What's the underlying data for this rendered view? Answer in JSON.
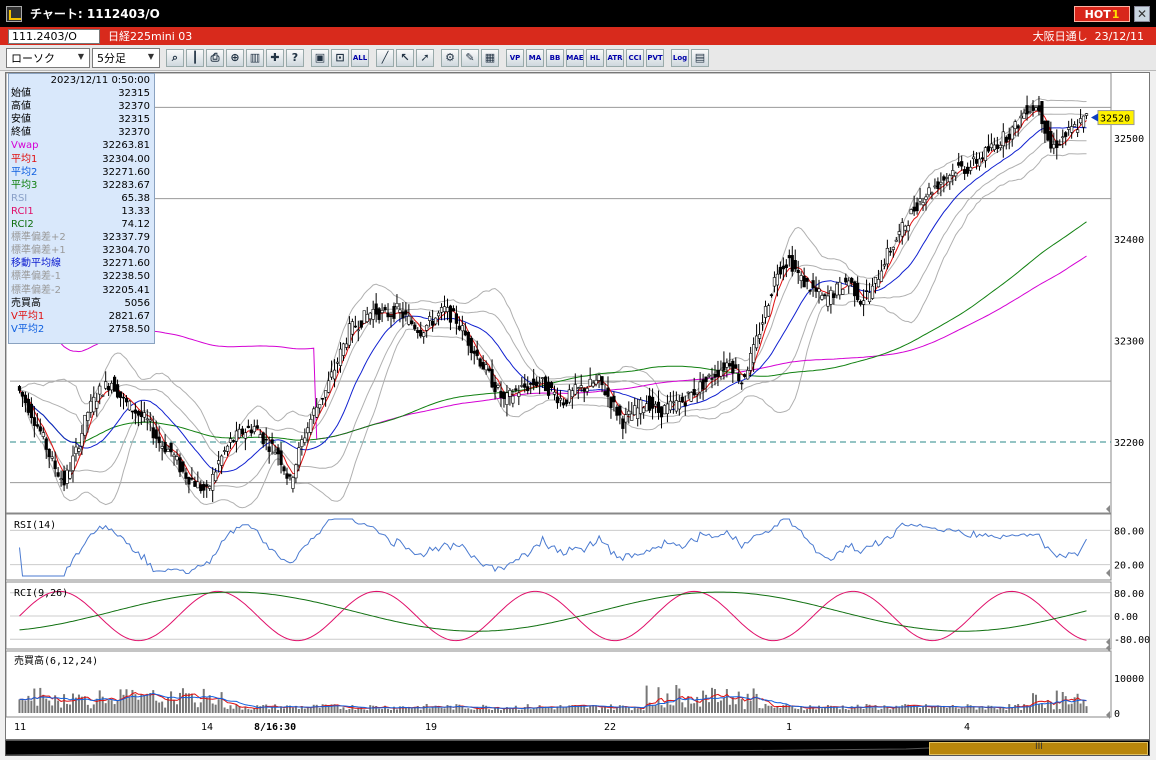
{
  "window": {
    "title": "チャート: 1112403/O"
  },
  "hot_button": {
    "label": "HOT",
    "num": "1"
  },
  "close_button": {
    "label": "✕"
  },
  "symbol_bar": {
    "code": "111.2403/O",
    "name": "日経225mini 03",
    "market": "大阪日通し",
    "date": "23/12/11"
  },
  "toolbar": {
    "chart_type": "ローソク",
    "interval": "5分足",
    "buttons": [
      "search",
      "cursor",
      "print",
      "zoom",
      "indicator",
      "crossline",
      "help",
      "candle",
      "range",
      "all",
      "line",
      "pointer",
      "arrow",
      "gear",
      "pencil",
      "palette",
      "vp",
      "ma",
      "bb",
      "mae",
      "hl",
      "atr",
      "cci",
      "pvt",
      "log",
      "settings"
    ],
    "button_labels": {
      "all": "ALL",
      "vp": "VP",
      "ma": "MA",
      "bb": "BB",
      "mae": "MAE",
      "hl": "HL",
      "atr": "ATR",
      "cci": "CCI",
      "pvt": "PVT",
      "log": "Log"
    }
  },
  "info_panel": {
    "datetime": "2023/12/11 0:50:00",
    "rows": [
      {
        "label": "始値",
        "value": "32315",
        "color": "#000000"
      },
      {
        "label": "高値",
        "value": "32370",
        "color": "#000000"
      },
      {
        "label": "安値",
        "value": "32315",
        "color": "#000000"
      },
      {
        "label": "終値",
        "value": "32370",
        "color": "#000000"
      },
      {
        "label": "Vwap",
        "value": "32263.81",
        "color": "#d400d4"
      },
      {
        "label": "平均1",
        "value": "32304.00",
        "color": "#e01010"
      },
      {
        "label": "平均2",
        "value": "32271.60",
        "color": "#1060e0"
      },
      {
        "label": "平均3",
        "value": "32283.67",
        "color": "#108010"
      },
      {
        "label": "RSI",
        "value": "65.38",
        "color": "#8aa0c8"
      },
      {
        "label": "RCI1",
        "value": "13.33",
        "color": "#e0106a"
      },
      {
        "label": "RCI2",
        "value": "74.12",
        "color": "#107010"
      },
      {
        "label": "標準偏差+2",
        "value": "32337.79",
        "color": "#9a9a9a"
      },
      {
        "label": "標準偏差+1",
        "value": "32304.70",
        "color": "#9a9a9a"
      },
      {
        "label": "移動平均線",
        "value": "32271.60",
        "color": "#1020d0"
      },
      {
        "label": "標準偏差-1",
        "value": "32238.50",
        "color": "#9a9a9a"
      },
      {
        "label": "標準偏差-2",
        "value": "32205.41",
        "color": "#9a9a9a"
      },
      {
        "label": "売買高",
        "value": "5056",
        "color": "#000000"
      },
      {
        "label": "V平均1",
        "value": "2821.67",
        "color": "#e01010"
      },
      {
        "label": "V平均2",
        "value": "2758.50",
        "color": "#1060e0"
      }
    ]
  },
  "price_axis": {
    "labels": [
      "32500",
      "32400",
      "32300",
      "32200"
    ],
    "current": "32520"
  },
  "rsi_panel": {
    "title": "RSI(14)",
    "labels": [
      "80.00",
      "20.00"
    ]
  },
  "rci_panel": {
    "title": "RCI(9,26)",
    "labels": [
      "80.00",
      "0.00",
      "-80.00"
    ]
  },
  "vol_panel": {
    "title": "売買高(6,12,24)",
    "labels": [
      "10000",
      "0"
    ]
  },
  "x_axis": {
    "labels": [
      "11",
      "14",
      "8/16:30",
      "19",
      "22",
      "1",
      "4"
    ]
  },
  "navigator": {
    "grip": "III"
  },
  "chart_data": {
    "type": "candlestick",
    "symbol": "111.2403/O",
    "interval": "5分足",
    "price_axis_ticks": [
      32500,
      32400,
      32300,
      32200
    ],
    "price_range": [
      32130,
      32560
    ],
    "current_price": 32520,
    "dashed_level": 32200,
    "close_path": [
      32255,
      32235,
      32210,
      32180,
      32160,
      32190,
      32230,
      32250,
      32260,
      32240,
      32230,
      32220,
      32200,
      32190,
      32170,
      32160,
      32150,
      32180,
      32200,
      32210,
      32215,
      32200,
      32190,
      32160,
      32200,
      32230,
      32250,
      32280,
      32310,
      32320,
      32330,
      32325,
      32330,
      32320,
      32310,
      32320,
      32330,
      32320,
      32300,
      32280,
      32260,
      32240,
      32250,
      32255,
      32260,
      32250,
      32240,
      32250,
      32255,
      32260,
      32240,
      32220,
      32230,
      32240,
      32230,
      32235,
      32240,
      32250,
      32260,
      32270,
      32280,
      32260,
      32290,
      32330,
      32370,
      32380,
      32360,
      32350,
      32340,
      32350,
      32360,
      32340,
      32350,
      32380,
      32400,
      32420,
      32440,
      32450,
      32460,
      32470,
      32470,
      32480,
      32490,
      32500,
      32510,
      32530,
      32530,
      32490,
      32500,
      32510,
      32520
    ],
    "rsi_levels": [
      80,
      20
    ],
    "rci_levels": [
      80,
      0,
      -80
    ],
    "volume_ticks": [
      10000,
      0
    ]
  }
}
